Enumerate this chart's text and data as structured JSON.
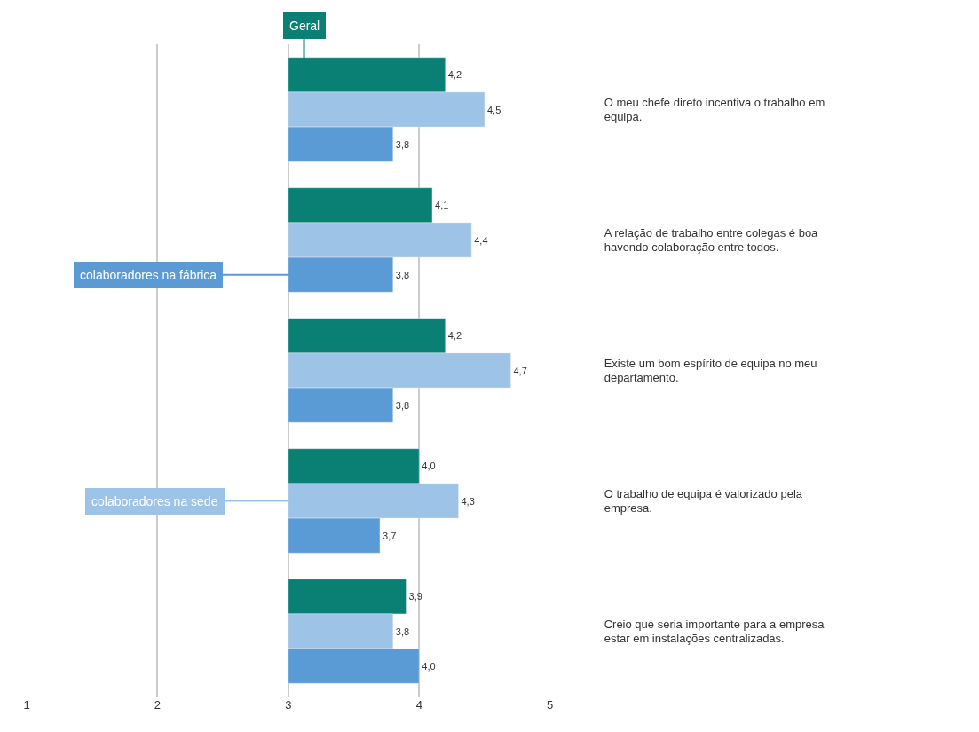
{
  "chart_data": {
    "type": "bar",
    "orientation": "horizontal",
    "categories": [
      "O meu chefe direto incentiva o trabalho em equipa.",
      "A relação de trabalho entre colegas é boa havendo colaboração entre todos.",
      "Existe um bom espírito de equipa no meu departamento.",
      "O trabalho de equipa é valorizado pela empresa.",
      "Creio que seria importante para a empresa estar em instalações centralizadas."
    ],
    "series": [
      {
        "name": "Geral",
        "color": "#0a7f73",
        "values": [
          1.2,
          1.1,
          1.2,
          1.0,
          0.9
        ],
        "base": [
          3,
          3,
          3,
          3,
          3
        ],
        "value_labels": [
          "4,2",
          "4,1",
          "4,2",
          "4,0",
          "3,9"
        ]
      },
      {
        "name": "colaboradores na sede",
        "color": "#9dc3e6",
        "values": [
          1.5,
          1.4,
          1.7,
          1.3,
          0.8
        ],
        "base": [
          3,
          3,
          3,
          3,
          3
        ],
        "value_labels": [
          "4,5",
          "4,4",
          "4,7",
          "4,3",
          "3,8"
        ]
      },
      {
        "name": "colaboradores na fábrica",
        "color": "#5b9bd5",
        "values": [
          0.8,
          0.8,
          0.8,
          0.7,
          1.0
        ],
        "base": [
          3,
          3,
          3,
          3,
          3
        ],
        "value_labels": [
          "3,8",
          "3,8",
          "3,8",
          "3,7",
          "4,0"
        ]
      }
    ],
    "xlim": [
      1,
      5
    ],
    "xticks": [
      1,
      2,
      3,
      4,
      5
    ],
    "grid": "x",
    "legend": "left"
  }
}
